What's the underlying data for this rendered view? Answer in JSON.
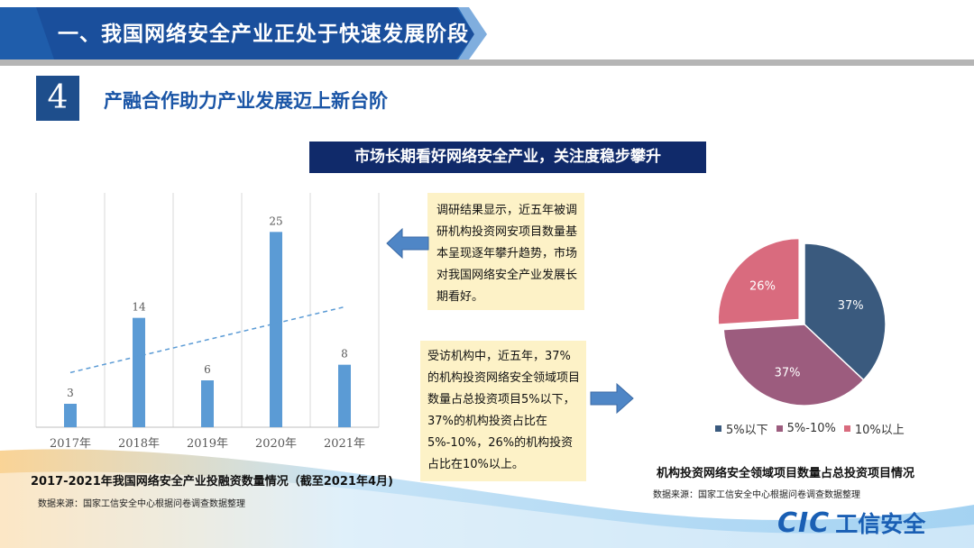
{
  "header": {
    "title": "一、我国网络安全产业正处于快速发展阶段",
    "colors": {
      "banner": "#1a4f9c",
      "banner_accent": "#2c78c8"
    }
  },
  "section": {
    "number": "4",
    "subtitle": "产融合作助力产业发展迈上新台阶",
    "banner": "市场长期看好网络安全产业，关注度稳步攀升"
  },
  "chart_data": [
    {
      "type": "bar",
      "categories": [
        "2017年",
        "2018年",
        "2019年",
        "2020年",
        "2021年"
      ],
      "values": [
        3,
        14,
        6,
        25,
        8
      ],
      "data_labels": [
        "3",
        "14",
        "6",
        "25",
        "8"
      ],
      "ylim": [
        0,
        30
      ],
      "trendline": true,
      "bar_color": "#5b9bd5",
      "caption": "2017-2021年我国网络安全产业投融资数量情况（截至2021年4月)",
      "source": "数据来源：国家工信安全中心根据问卷调查数据整理"
    },
    {
      "type": "pie",
      "series": [
        {
          "name": "5%以下",
          "value": 37,
          "label": "37%",
          "color": "#3a5a7e"
        },
        {
          "name": "5%-10%",
          "value": 37,
          "label": "37%",
          "color": "#9c5c7e"
        },
        {
          "name": "10%以上",
          "value": 26,
          "label": "26%",
          "color": "#d96b7e"
        }
      ],
      "caption": "机构投资网络安全领域项目数量占总投资项目情况",
      "source": "数据来源：国家工信安全中心根据问卷调查数据整理"
    }
  ],
  "notes": {
    "note1": "调研结果显示，近五年被调研机构投资网安项目数量基本呈现逐年攀升趋势，市场对我国网络安全产业发展长期看好。",
    "note2": "受访机构中，近五年，37%的机构投资网络安全领域项目数量占总投资项目5%以下，37%的机构投资占比在5%-10%，26%的机构投资占比在10%以上。"
  },
  "logo": {
    "mark": "CIC",
    "text": "工信安全"
  }
}
